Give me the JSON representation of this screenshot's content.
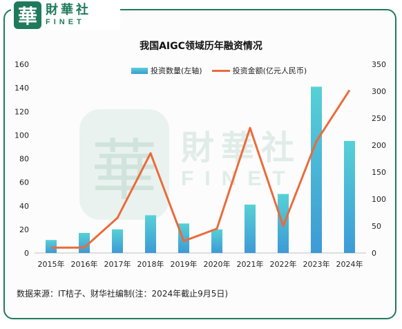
{
  "brand": {
    "seal_char": "華",
    "name_cn": "財華社",
    "name_en": "FINET"
  },
  "colors": {
    "brand": "#1f7a5c",
    "bar_top": "#57d0d6",
    "bar_bottom": "#3d9ad6",
    "line": "#ec6a3a"
  },
  "source_note": "数据来源：IT桔子、财华社编制(注：2024年截止9月5日)",
  "chart_data": {
    "type": "bar",
    "title": "我国AIGC领域历年融资情况",
    "categories": [
      "2015年",
      "2016年",
      "2017年",
      "2018年",
      "2019年",
      "2020年",
      "2021年",
      "2022年",
      "2023年",
      "2024年"
    ],
    "series": [
      {
        "name": "投资数量(左轴)",
        "type": "bar",
        "axis": "left",
        "values": [
          11,
          17,
          20,
          32,
          25,
          20,
          41,
          50,
          141,
          95
        ]
      },
      {
        "name": "投资金额(亿元人民币)",
        "type": "line",
        "axis": "right",
        "values": [
          10,
          10,
          65,
          185,
          22,
          45,
          232,
          50,
          207,
          302
        ]
      }
    ],
    "y_left": {
      "min": 0,
      "max": 160,
      "ticks": [
        0,
        20,
        40,
        60,
        80,
        100,
        120,
        140,
        160
      ]
    },
    "y_right": {
      "min": 0,
      "max": 350,
      "ticks": [
        0,
        50,
        100,
        150,
        200,
        250,
        300,
        350
      ]
    },
    "legend_position": "top",
    "grid": false
  }
}
